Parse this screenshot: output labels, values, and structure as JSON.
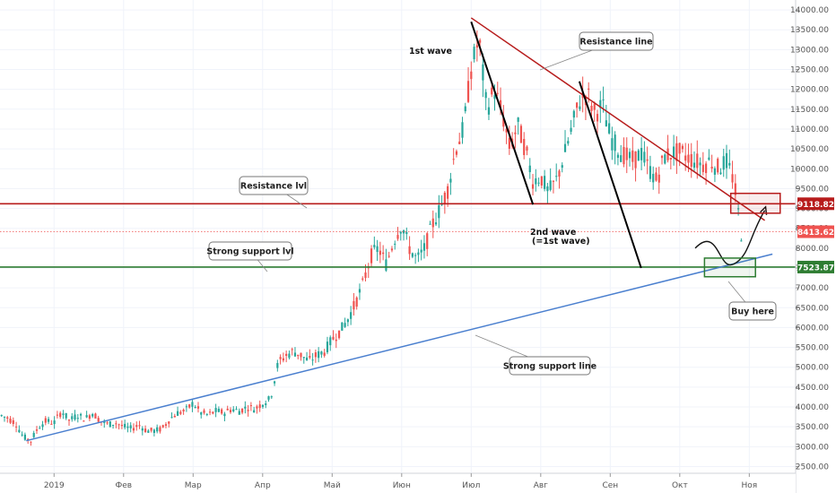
{
  "chart_data": {
    "type": "candlestick",
    "y_ticks": [
      2500,
      3000,
      3500,
      4000,
      4500,
      5000,
      5500,
      6000,
      6500,
      7000,
      7500,
      8000,
      8500,
      9000,
      9500,
      10000,
      10500,
      11000,
      11500,
      12000,
      12500,
      13000,
      13500,
      14000
    ],
    "y_tick_labels": [
      "2500.00",
      "3000.00",
      "3500.00",
      "4000.00",
      "4500.00",
      "5000.00",
      "5500.00",
      "6000.00",
      "6500.00",
      "7000.00",
      "7500.00",
      "8000.00",
      "8500.00",
      "9000.00",
      "9500.00",
      "10000.00",
      "10500.00",
      "11000.00",
      "11500.00",
      "12000.00",
      "12500.00",
      "13000.00",
      "13500.00",
      "14000.00"
    ],
    "ylim": [
      2330,
      14250
    ],
    "x_tick_labels": [
      "2019",
      "Фев",
      "Мар",
      "Апр",
      "Май",
      "Июн",
      "Июл",
      "Авг",
      "Сен",
      "Окт",
      "Ноя"
    ],
    "x_tick_pos": [
      0.5,
      5,
      9.5,
      14,
      18.5,
      23,
      27.5,
      32,
      36.5,
      41,
      45.5
    ],
    "xlim": [
      -3,
      48.5
    ],
    "price_series": [
      [
        -3,
        3800
      ],
      [
        -2.5,
        3720
      ],
      [
        -2,
        3600
      ],
      [
        -1.5,
        3250
      ],
      [
        -1,
        3150
      ],
      [
        -0.5,
        3500
      ],
      [
        0,
        3650
      ],
      [
        0.5,
        3600
      ],
      [
        1,
        3900
      ],
      [
        1.5,
        3650
      ],
      [
        2,
        3800
      ],
      [
        2.5,
        3700
      ],
      [
        3,
        3850
      ],
      [
        3.5,
        3650
      ],
      [
        4,
        3560
      ],
      [
        4.5,
        3600
      ],
      [
        5,
        3500
      ],
      [
        5.5,
        3450
      ],
      [
        6,
        3550
      ],
      [
        6.5,
        3400
      ],
      [
        7,
        3400
      ],
      [
        7.5,
        3450
      ],
      [
        8,
        3700
      ],
      [
        8.5,
        3850
      ],
      [
        9,
        3900
      ],
      [
        9.5,
        4100
      ],
      [
        10,
        3850
      ],
      [
        10.5,
        3800
      ],
      [
        11,
        3900
      ],
      [
        11.5,
        3850
      ],
      [
        12,
        3950
      ],
      [
        12.5,
        3900
      ],
      [
        13,
        4000
      ],
      [
        13.5,
        3950
      ],
      [
        14,
        4100
      ],
      [
        14.5,
        4200
      ],
      [
        15,
        5100
      ],
      [
        15.5,
        5300
      ],
      [
        16,
        5400
      ],
      [
        16.5,
        5300
      ],
      [
        17,
        5150
      ],
      [
        17.5,
        5300
      ],
      [
        18,
        5400
      ],
      [
        18.5,
        5700
      ],
      [
        19,
        5900
      ],
      [
        19.5,
        6200
      ],
      [
        20,
        6600
      ],
      [
        20.5,
        7100
      ],
      [
        21,
        7800
      ],
      [
        21.5,
        8000
      ],
      [
        22,
        7600
      ],
      [
        22.5,
        8200
      ],
      [
        23,
        8600
      ],
      [
        23.5,
        8000
      ],
      [
        24,
        7700
      ],
      [
        24.5,
        8000
      ],
      [
        25,
        8600
      ],
      [
        25.5,
        9000
      ],
      [
        26,
        9500
      ],
      [
        26.5,
        10500
      ],
      [
        27,
        11000
      ],
      [
        27.5,
        12500
      ],
      [
        28,
        13300
      ],
      [
        28.5,
        11500
      ],
      [
        29,
        12000
      ],
      [
        29.5,
        11400
      ],
      [
        30,
        10500
      ],
      [
        30.5,
        11100
      ],
      [
        31,
        10500
      ],
      [
        31.5,
        9700
      ],
      [
        32,
        9800
      ],
      [
        32.5,
        9400
      ],
      [
        33,
        9700
      ],
      [
        33.5,
        10300
      ],
      [
        34,
        11000
      ],
      [
        34.5,
        11700
      ],
      [
        35,
        11900
      ],
      [
        35.5,
        11400
      ],
      [
        36,
        11600
      ],
      [
        36.5,
        10800
      ],
      [
        37,
        10500
      ],
      [
        37.5,
        10300
      ],
      [
        38,
        10200
      ],
      [
        38.5,
        10400
      ],
      [
        39,
        10000
      ],
      [
        39.5,
        9700
      ],
      [
        40,
        10300
      ],
      [
        40.5,
        10400
      ],
      [
        41,
        10400
      ],
      [
        41.5,
        10300
      ],
      [
        42,
        10200
      ],
      [
        42.5,
        10100
      ],
      [
        43,
        10200
      ],
      [
        43.5,
        10000
      ],
      [
        44,
        10200
      ],
      [
        44.5,
        9700
      ],
      [
        45,
        8300
      ]
    ],
    "resistance_lvl": 9118.82,
    "current_price": 8413.62,
    "support_lvl": 7523.87,
    "price_labels": [
      "9118.82",
      "8413.62",
      "7523.87"
    ],
    "annotations": {
      "resistance_line": "Resistance line",
      "resistance_lvl": "Resistance lvl",
      "support_lvl": "Strong support lvl",
      "support_line": "Strong support line",
      "first_wave": "1st wave",
      "second_wave": "2nd wave",
      "second_wave_sub": "(=1st wave)",
      "buy_here": "Buy here"
    },
    "colors": {
      "resistance": "#b71c1c",
      "support": "#2e7d32",
      "support_line": "#4a7fcf",
      "current": "#ef5350",
      "up": "#26a69a",
      "down": "#ef5350"
    }
  }
}
